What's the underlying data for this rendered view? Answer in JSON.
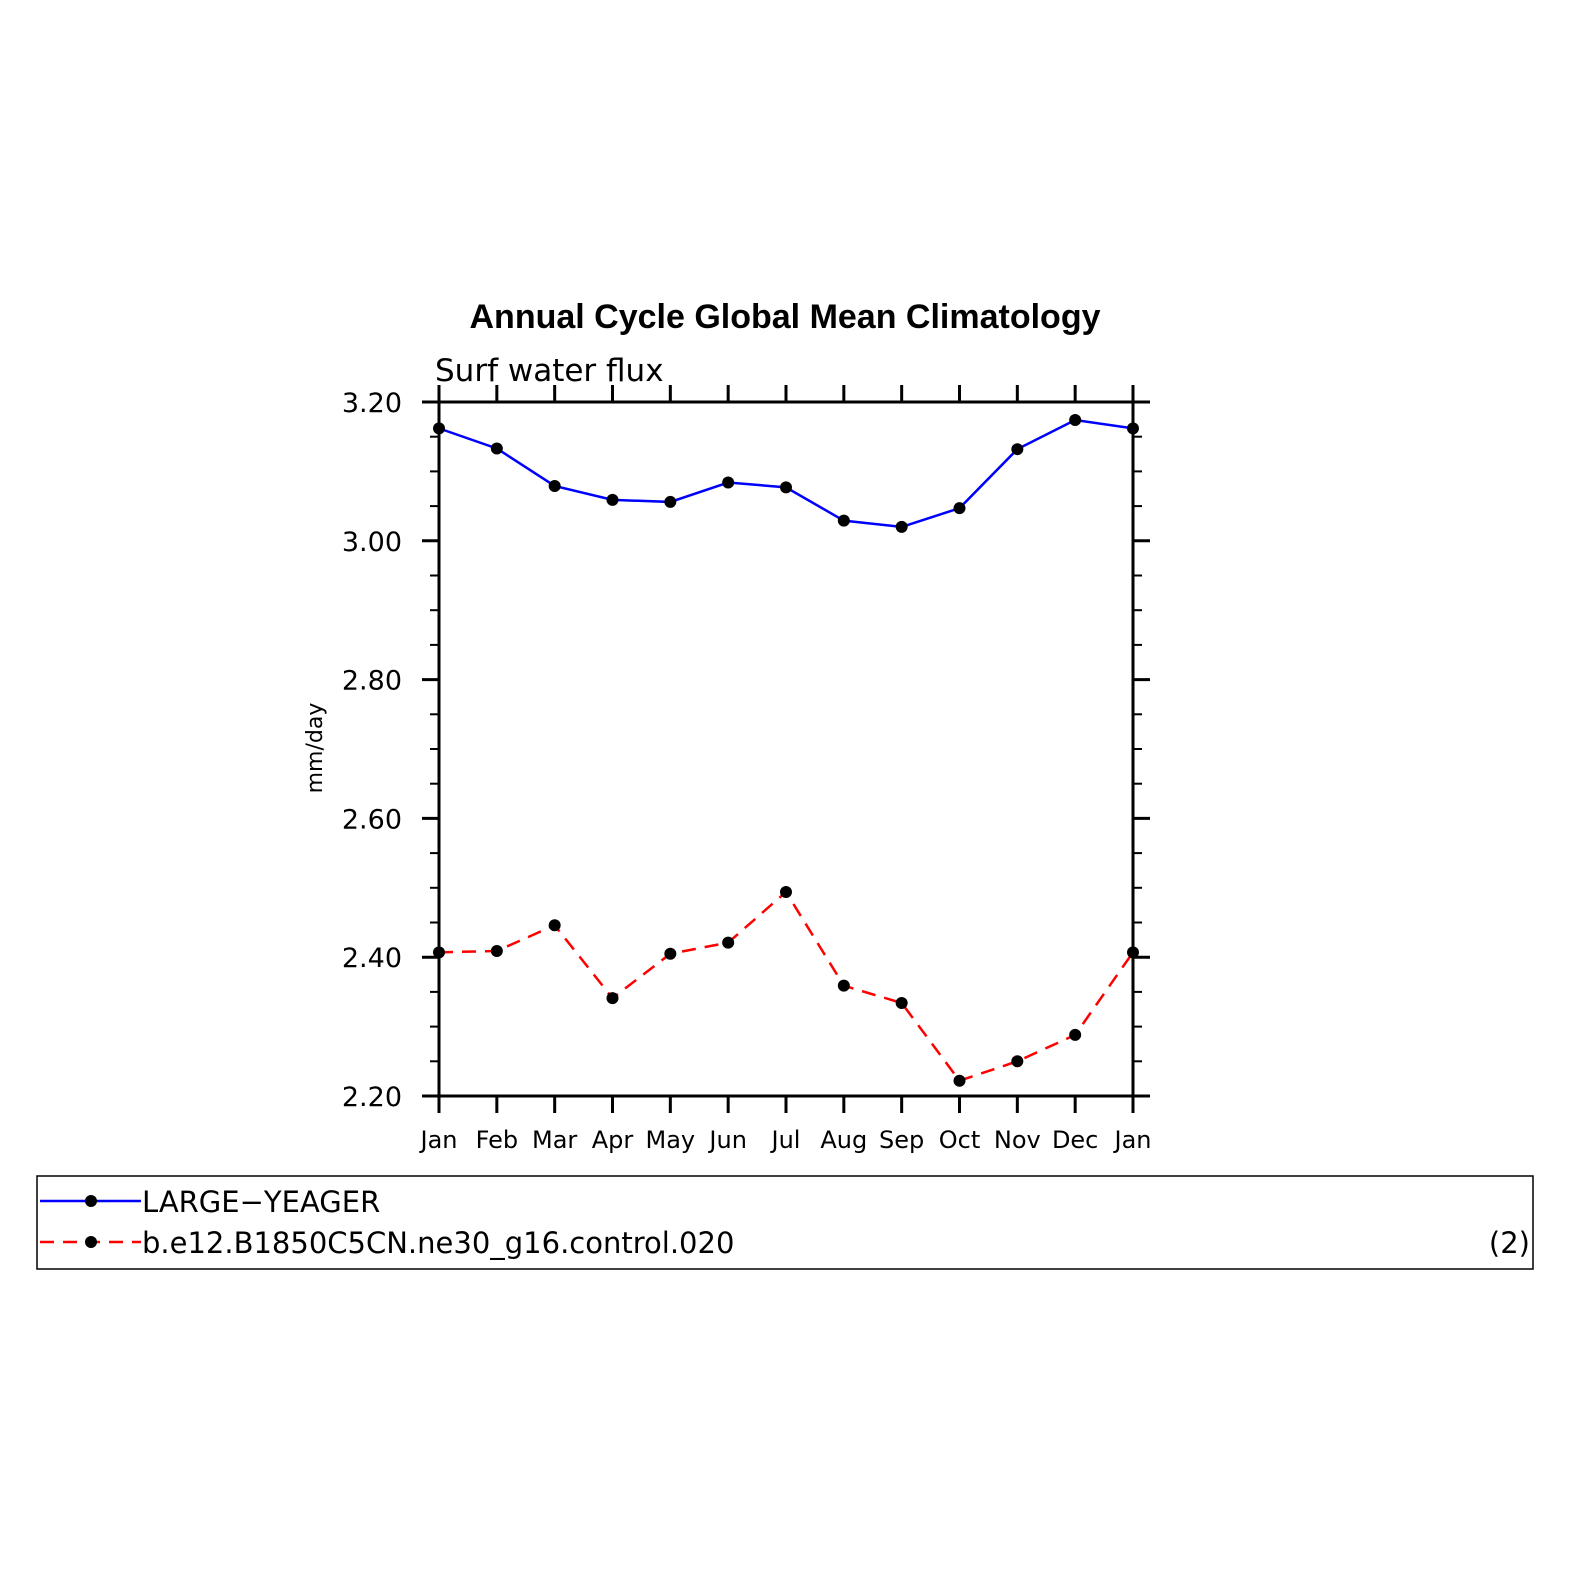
{
  "chart_data": {
    "type": "line",
    "title": "Annual Cycle Global Mean Climatology",
    "subtitle": "Surf water flux",
    "ylabel": "mm/day",
    "xlabel": "",
    "categories": [
      "Jan",
      "Feb",
      "Mar",
      "Apr",
      "May",
      "Jun",
      "Jul",
      "Aug",
      "Sep",
      "Oct",
      "Nov",
      "Dec",
      "Jan"
    ],
    "ylim": [
      2.2,
      3.2
    ],
    "yticks": [
      "2.20",
      "2.40",
      "2.60",
      "2.80",
      "3.00",
      "3.20"
    ],
    "grid": false,
    "legend_position": "bottom",
    "legend_note": "(2)",
    "series": [
      {
        "name": "LARGE−YEAGER",
        "color": "#0000ff",
        "dash": "solid",
        "values": [
          3.162,
          3.133,
          3.079,
          3.059,
          3.056,
          3.084,
          3.077,
          3.029,
          3.02,
          3.047,
          3.132,
          3.174,
          3.162
        ]
      },
      {
        "name": "b.e12.B1850C5CN.ne30_g16.control.020",
        "color": "#ff0000",
        "dash": "dashed",
        "values": [
          2.407,
          2.409,
          2.446,
          2.341,
          2.405,
          2.421,
          2.494,
          2.359,
          2.334,
          2.222,
          2.25,
          2.288,
          2.407
        ]
      }
    ]
  }
}
